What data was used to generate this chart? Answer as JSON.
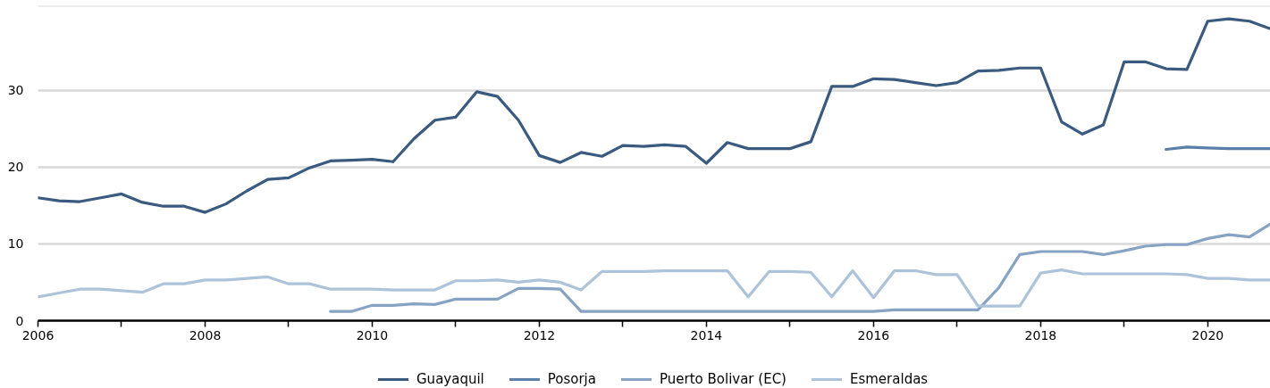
{
  "chart_data": {
    "type": "line",
    "x": [
      2006,
      2006.25,
      2006.5,
      2006.75,
      2007,
      2007.25,
      2007.5,
      2007.75,
      2008,
      2008.25,
      2008.5,
      2008.75,
      2009,
      2009.25,
      2009.5,
      2009.75,
      2010,
      2010.25,
      2010.5,
      2010.75,
      2011,
      2011.25,
      2011.5,
      2011.75,
      2012,
      2012.25,
      2012.5,
      2012.75,
      2013,
      2013.25,
      2013.5,
      2013.75,
      2014,
      2014.25,
      2014.5,
      2014.75,
      2015,
      2015.25,
      2015.5,
      2015.75,
      2016,
      2016.25,
      2016.5,
      2016.75,
      2017,
      2017.25,
      2017.5,
      2017.75,
      2018,
      2018.25,
      2018.5,
      2018.75,
      2019,
      2019.25,
      2019.5,
      2019.75,
      2020,
      2020.25,
      2020.5,
      2020.75
    ],
    "series": [
      {
        "name": "Guayaquil",
        "color": "#3a5a80",
        "values": [
          16.0,
          15.6,
          15.5,
          16.0,
          16.5,
          15.4,
          14.9,
          14.9,
          14.1,
          15.2,
          16.9,
          18.4,
          18.6,
          19.9,
          20.8,
          20.9,
          21.0,
          20.7,
          23.7,
          26.1,
          26.5,
          29.8,
          29.2,
          26.1,
          21.5,
          20.6,
          21.9,
          21.4,
          22.8,
          22.7,
          22.9,
          22.7,
          20.5,
          23.2,
          22.4,
          22.4,
          22.4,
          23.3,
          30.5,
          30.5,
          31.5,
          31.4,
          31.0,
          30.6,
          31.0,
          32.5,
          32.6,
          32.9,
          32.9,
          25.9,
          24.3,
          25.5,
          33.7,
          33.7,
          32.8,
          32.7,
          39.0,
          39.3,
          39.0,
          38.0
        ]
      },
      {
        "name": "Posorja",
        "color": "#5a7fa8",
        "x": [
          2019.5,
          2019.75,
          2020,
          2020.25,
          2020.5,
          2020.75
        ],
        "values": [
          22.3,
          22.6,
          22.5,
          22.4,
          22.4,
          22.4
        ]
      },
      {
        "name": "Puerto Bolivar (EC)",
        "color": "#87a3c4",
        "x": [
          2009.5,
          2009.75,
          2010,
          2010.25,
          2010.5,
          2010.75,
          2011,
          2011.25,
          2011.5,
          2011.75,
          2012,
          2012.25,
          2012.5,
          2012.75,
          2013,
          2013.25,
          2013.5,
          2013.75,
          2014,
          2014.25,
          2014.5,
          2014.75,
          2015,
          2015.25,
          2015.5,
          2015.75,
          2016,
          2016.25,
          2016.5,
          2016.75,
          2017,
          2017.25,
          2017.5,
          2017.75,
          2018,
          2018.25,
          2018.5,
          2018.75,
          2019,
          2019.25,
          2019.5,
          2019.75,
          2020,
          2020.25,
          2020.5,
          2020.75
        ],
        "values": [
          1.2,
          1.2,
          2.0,
          2.0,
          2.2,
          2.1,
          2.8,
          2.8,
          2.8,
          4.2,
          4.2,
          4.1,
          1.2,
          1.2,
          1.2,
          1.2,
          1.2,
          1.2,
          1.2,
          1.2,
          1.2,
          1.2,
          1.2,
          1.2,
          1.2,
          1.2,
          1.2,
          1.4,
          1.4,
          1.4,
          1.4,
          1.4,
          4.3,
          8.6,
          9.0,
          9.0,
          9.0,
          8.6,
          9.1,
          9.7,
          9.9,
          9.9,
          10.7,
          11.2,
          10.9,
          12.6
        ]
      },
      {
        "name": "Esmeraldas",
        "color": "#adc3d9",
        "values": [
          3.1,
          3.6,
          4.1,
          4.1,
          3.9,
          3.7,
          4.8,
          4.8,
          5.3,
          5.3,
          5.5,
          5.7,
          4.8,
          4.8,
          4.1,
          4.1,
          4.1,
          4.0,
          4.0,
          4.0,
          5.2,
          5.2,
          5.3,
          5.0,
          5.3,
          5.0,
          4.0,
          6.4,
          6.4,
          6.4,
          6.5,
          6.5,
          6.5,
          6.5,
          3.1,
          6.4,
          6.4,
          6.3,
          3.1,
          6.5,
          3.0,
          6.5,
          6.5,
          6.0,
          6.0,
          1.9,
          1.9,
          1.9,
          6.2,
          6.6,
          6.1,
          6.1,
          6.1,
          6.1,
          6.1,
          6.0,
          5.5,
          5.5,
          5.3,
          5.3
        ]
      }
    ],
    "xlim": [
      2006,
      2020.75
    ],
    "xticks": [
      2006,
      {
        "value": 2007,
        "label": null
      },
      2008,
      {
        "value": 2009,
        "label": null
      },
      2010,
      {
        "value": 2011,
        "label": null
      },
      2012,
      {
        "value": 2013,
        "label": null
      },
      2014,
      {
        "value": 2015,
        "label": null
      },
      2016,
      {
        "value": 2017,
        "label": null
      },
      2018,
      {
        "value": 2019,
        "label": null
      },
      2020
    ],
    "ylim": [
      0,
      41
    ],
    "yticks": [
      0,
      10,
      20,
      30
    ],
    "grid": "y",
    "legend": "bottom",
    "line_style": "solid"
  }
}
